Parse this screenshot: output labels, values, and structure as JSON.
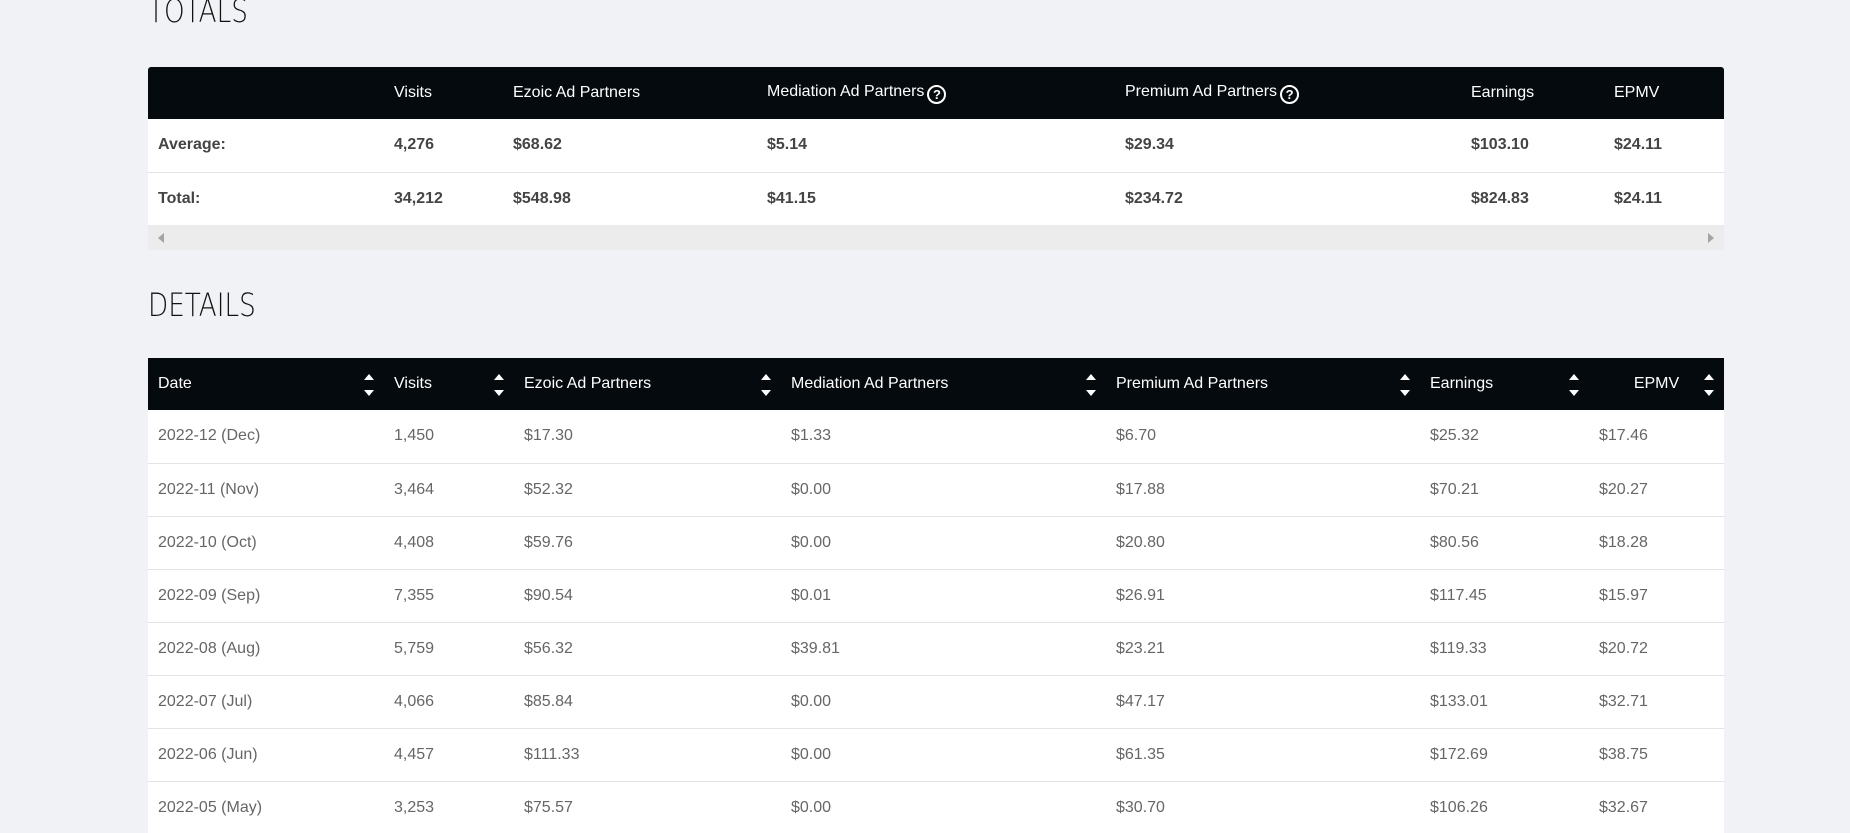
{
  "totals": {
    "title": "TOTALS",
    "columns": [
      "",
      "Visits",
      "Ezoic Ad Partners",
      "Mediation Ad Partners",
      "Premium Ad Partners",
      "Earnings",
      "EPMV"
    ],
    "rows": [
      {
        "label": "Average:",
        "visits": "4,276",
        "ezoic": "$68.62",
        "mediation": "$5.14",
        "premium": "$29.34",
        "earnings": "$103.10",
        "epmv": "$24.11"
      },
      {
        "label": "Total:",
        "visits": "34,212",
        "ezoic": "$548.98",
        "mediation": "$41.15",
        "premium": "$234.72",
        "earnings": "$824.83",
        "epmv": "$24.11"
      }
    ]
  },
  "details": {
    "title": "DETAILS",
    "columns": [
      "Date",
      "Visits",
      "Ezoic Ad Partners",
      "Mediation Ad Partners",
      "Premium Ad Partners",
      "Earnings",
      "EPMV"
    ],
    "rows": [
      {
        "date": "2022-12 (Dec)",
        "visits": "1,450",
        "ezoic": "$17.30",
        "mediation": "$1.33",
        "premium": "$6.70",
        "earnings": "$25.32",
        "epmv": "$17.46"
      },
      {
        "date": "2022-11 (Nov)",
        "visits": "3,464",
        "ezoic": "$52.32",
        "mediation": "$0.00",
        "premium": "$17.88",
        "earnings": "$70.21",
        "epmv": "$20.27"
      },
      {
        "date": "2022-10 (Oct)",
        "visits": "4,408",
        "ezoic": "$59.76",
        "mediation": "$0.00",
        "premium": "$20.80",
        "earnings": "$80.56",
        "epmv": "$18.28"
      },
      {
        "date": "2022-09 (Sep)",
        "visits": "7,355",
        "ezoic": "$90.54",
        "mediation": "$0.01",
        "premium": "$26.91",
        "earnings": "$117.45",
        "epmv": "$15.97"
      },
      {
        "date": "2022-08 (Aug)",
        "visits": "5,759",
        "ezoic": "$56.32",
        "mediation": "$39.81",
        "premium": "$23.21",
        "earnings": "$119.33",
        "epmv": "$20.72"
      },
      {
        "date": "2022-07 (Jul)",
        "visits": "4,066",
        "ezoic": "$85.84",
        "mediation": "$0.00",
        "premium": "$47.17",
        "earnings": "$133.01",
        "epmv": "$32.71"
      },
      {
        "date": "2022-06 (Jun)",
        "visits": "4,457",
        "ezoic": "$111.33",
        "mediation": "$0.00",
        "premium": "$61.35",
        "earnings": "$172.69",
        "epmv": "$38.75"
      },
      {
        "date": "2022-05 (May)",
        "visits": "3,253",
        "ezoic": "$75.57",
        "mediation": "$0.00",
        "premium": "$30.70",
        "earnings": "$106.26",
        "epmv": "$32.67"
      }
    ]
  },
  "icons": {
    "help": "question-circle",
    "sort": "sort-up-down",
    "scroll_left": "triangle-left",
    "scroll_right": "triangle-right"
  },
  "colors": {
    "header_bg": "#050a0e",
    "page_bg": "#f1f2f5"
  }
}
